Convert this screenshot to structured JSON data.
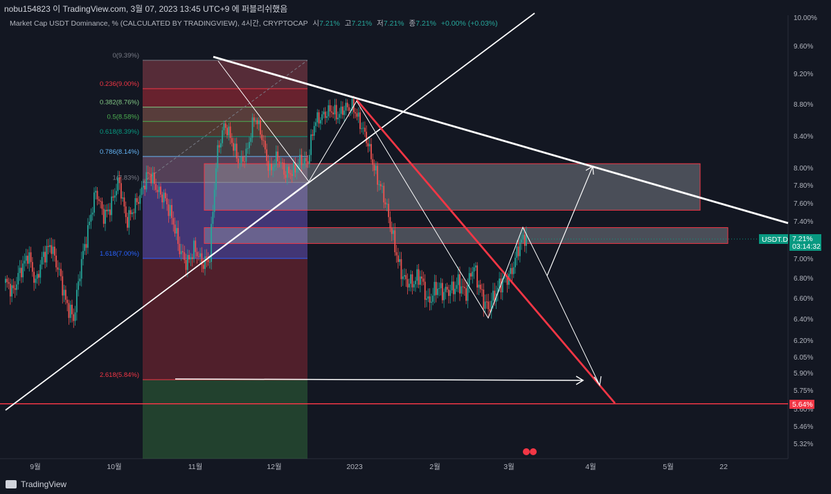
{
  "header": {
    "attribution": "nobu154823 이 TradingView.com, 3월 07, 2023 13:45 UTC+9 에 퍼블리쉬했음"
  },
  "legend": {
    "title": "Market Cap USDT Dominance, % (CALCULATED BY TRADINGVIEW), 4시간, CRYPTOCAP",
    "open_label": "시",
    "open": "7.21%",
    "high_label": "고",
    "high": "7.21%",
    "low_label": "저",
    "low": "7.21%",
    "close_label": "종",
    "close": "7.21%",
    "change": "+0.00% (+0.03%)"
  },
  "price_label": {
    "symbol": "USDT.D",
    "value": "7.21%",
    "countdown": "03:14:32",
    "support": "5.64%"
  },
  "footer": {
    "brand": "TradingView"
  },
  "colors": {
    "background": "#131722",
    "up": "#26a69a",
    "down": "#ef5350",
    "accent_red": "#f23645",
    "white": "#ffffff"
  },
  "chart_data": {
    "type": "candlestick",
    "y_axis_ticks": [
      "10.00%",
      "9.60%",
      "9.20%",
      "8.80%",
      "8.40%",
      "8.00%",
      "7.80%",
      "7.60%",
      "7.40%",
      "7.00%",
      "6.80%",
      "6.60%",
      "6.40%",
      "6.20%",
      "6.05%",
      "5.90%",
      "5.75%",
      "5.60%",
      "5.46%",
      "5.32%"
    ],
    "y_axis_values": [
      10.0,
      9.6,
      9.2,
      8.8,
      8.4,
      8.0,
      7.8,
      7.6,
      7.4,
      7.0,
      6.8,
      6.6,
      6.4,
      6.2,
      6.05,
      5.9,
      5.75,
      5.6,
      5.46,
      5.32
    ],
    "x_axis_ticks": [
      "9월",
      "10월",
      "11월",
      "12월",
      "2023",
      "2월",
      "3월",
      "4월",
      "5월",
      "22"
    ],
    "fib_levels": [
      {
        "label": "0(9.39%)",
        "ratio": 0,
        "price": 9.39,
        "color": "#787b86"
      },
      {
        "label": "0.236(9.00%)",
        "ratio": 0.236,
        "price": 9.0,
        "color": "#f23645"
      },
      {
        "label": "0.382(8.76%)",
        "ratio": 0.382,
        "price": 8.76,
        "color": "#81c784"
      },
      {
        "label": "0.5(8.58%)",
        "ratio": 0.5,
        "price": 8.58,
        "color": "#4caf50"
      },
      {
        "label": "0.618(8.39%)",
        "ratio": 0.618,
        "price": 8.39,
        "color": "#089981"
      },
      {
        "label": "0.786(8.14%)",
        "ratio": 0.786,
        "price": 8.14,
        "color": "#64b5f6"
      },
      {
        "label": "1(7.83%)",
        "ratio": 1,
        "price": 7.83,
        "color": "#787b86"
      },
      {
        "label": "1.618(7.00%)",
        "ratio": 1.618,
        "price": 7.0,
        "color": "#2962ff"
      },
      {
        "label": "2.618(5.84%)",
        "ratio": 2.618,
        "price": 5.84,
        "color": "#f23645"
      }
    ],
    "zones": [
      {
        "name": "upper-zone",
        "top": 8.05,
        "bottom": 7.52
      },
      {
        "name": "lower-zone",
        "top": 7.33,
        "bottom": 7.16
      }
    ],
    "close_series_approx": [
      6.75,
      6.6,
      6.9,
      7.1,
      6.7,
      7.0,
      7.2,
      6.9,
      6.5,
      6.4,
      7.0,
      7.3,
      7.7,
      7.5,
      7.6,
      7.8,
      7.4,
      7.6,
      7.7,
      7.9,
      7.8,
      7.7,
      7.4,
      7.1,
      7.0,
      7.1,
      6.9,
      7.0,
      8.2,
      8.5,
      8.3,
      8.1,
      8.2,
      8.6,
      8.4,
      8.0,
      8.1,
      7.9,
      8.0,
      8.1,
      8.0,
      8.6,
      8.7,
      8.7,
      8.6,
      8.8,
      8.8,
      8.5,
      8.3,
      8.0,
      7.7,
      7.3,
      7.0,
      6.8,
      6.7,
      6.8,
      6.6,
      6.7,
      6.6,
      6.7,
      6.8,
      6.6,
      6.9,
      6.7,
      6.5,
      6.6,
      6.8,
      6.9,
      7.1,
      7.2
    ],
    "support_level": 5.64
  }
}
